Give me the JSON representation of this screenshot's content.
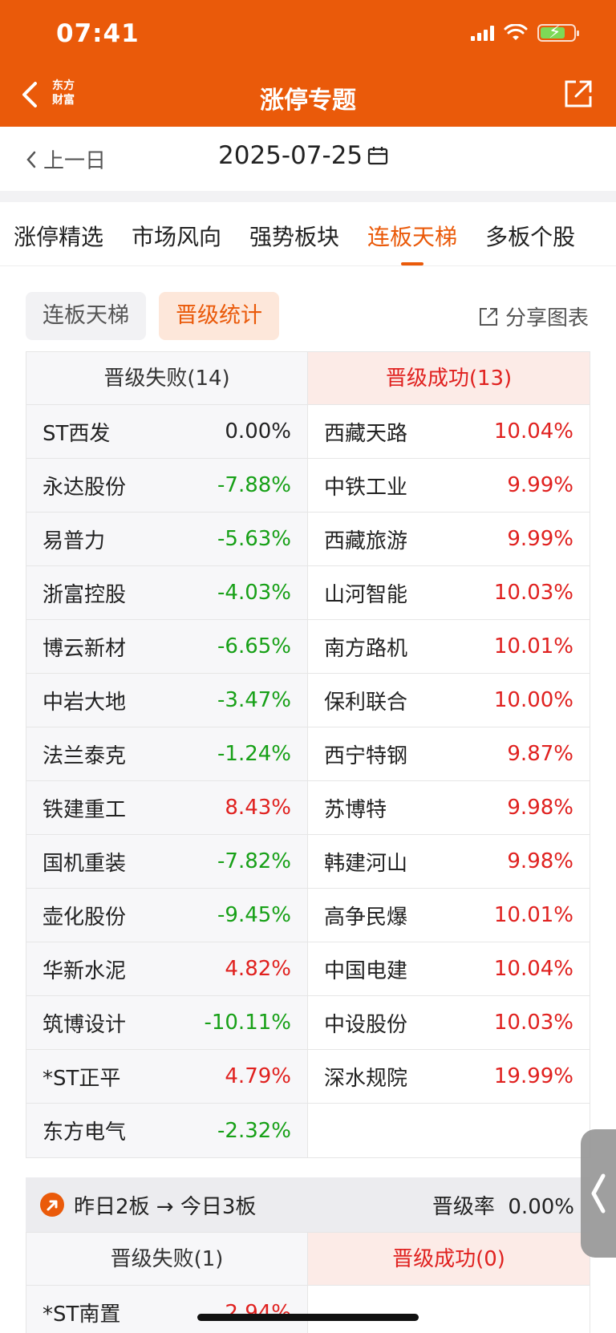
{
  "status": {
    "time": "07:41"
  },
  "header": {
    "title": "涨停专题",
    "logo_line1": "东方",
    "logo_line2": "财富"
  },
  "datebar": {
    "prev_label": "上一日",
    "date": "2025-07-25"
  },
  "tabs": [
    "涨停精选",
    "市场风向",
    "强势板块",
    "连板天梯",
    "多板个股"
  ],
  "active_tab": 3,
  "segments": {
    "seg1": "连板天梯",
    "seg2": "晋级统计"
  },
  "share_chart_label": "分享图表",
  "table1": {
    "fail_header": "晋级失败(14)",
    "success_header": "晋级成功(13)",
    "fail": [
      {
        "name": "ST西发",
        "pct": "0.00%"
      },
      {
        "name": "永达股份",
        "pct": "-7.88%"
      },
      {
        "name": "易普力",
        "pct": "-5.63%"
      },
      {
        "name": "浙富控股",
        "pct": "-4.03%"
      },
      {
        "name": "博云新材",
        "pct": "-6.65%"
      },
      {
        "name": "中岩大地",
        "pct": "-3.47%"
      },
      {
        "name": "法兰泰克",
        "pct": "-1.24%"
      },
      {
        "name": "铁建重工",
        "pct": "8.43%"
      },
      {
        "name": "国机重装",
        "pct": "-7.82%"
      },
      {
        "name": "壶化股份",
        "pct": "-9.45%"
      },
      {
        "name": "华新水泥",
        "pct": "4.82%"
      },
      {
        "name": "筑博设计",
        "pct": "-10.11%"
      },
      {
        "name": "*ST正平",
        "pct": "4.79%"
      },
      {
        "name": "东方电气",
        "pct": "-2.32%"
      }
    ],
    "success": [
      {
        "name": "西藏天路",
        "pct": "10.04%"
      },
      {
        "name": "中铁工业",
        "pct": "9.99%"
      },
      {
        "name": "西藏旅游",
        "pct": "9.99%"
      },
      {
        "name": "山河智能",
        "pct": "10.03%"
      },
      {
        "name": "南方路机",
        "pct": "10.01%"
      },
      {
        "name": "保利联合",
        "pct": "10.00%"
      },
      {
        "name": "西宁特钢",
        "pct": "9.87%"
      },
      {
        "name": "苏博特",
        "pct": "9.98%"
      },
      {
        "name": "韩建河山",
        "pct": "9.98%"
      },
      {
        "name": "高争民爆",
        "pct": "10.01%"
      },
      {
        "name": "中国电建",
        "pct": "10.04%"
      },
      {
        "name": "中设股份",
        "pct": "10.03%"
      },
      {
        "name": "深水规院",
        "pct": "19.99%"
      }
    ]
  },
  "section2": {
    "label": "昨日2板 → 今日3板",
    "rate_label": "晋级率",
    "rate_value": "0.00%"
  },
  "table2": {
    "fail_header": "晋级失败(1)",
    "success_header": "晋级成功(0)",
    "fail": [
      {
        "name": "*ST南置",
        "pct": "2.94%"
      }
    ],
    "success": []
  },
  "colors": {
    "brand": "#ea5a0a",
    "up": "#e0211f",
    "down": "#17a017"
  }
}
